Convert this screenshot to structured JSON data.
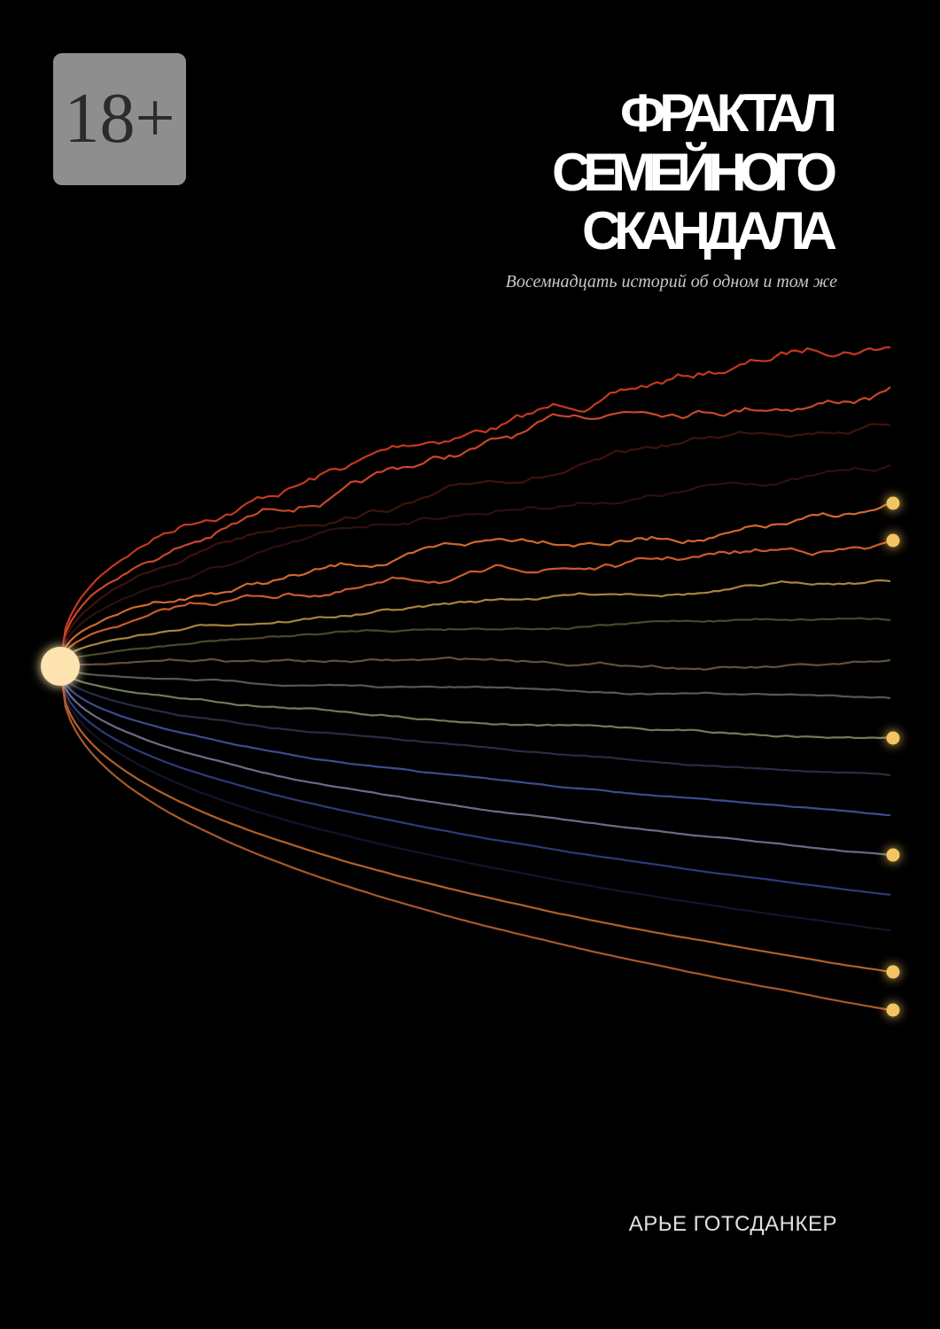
{
  "badge": "18+",
  "title": {
    "lines": [
      "ФРАКТАЛ",
      "СЕМЕЙНОГО",
      "СКАНДАЛА"
    ]
  },
  "subtitle": "Восемнадцать историй об одном и том же",
  "author": "АРЬЕ ГОТСДАНКЕР"
}
